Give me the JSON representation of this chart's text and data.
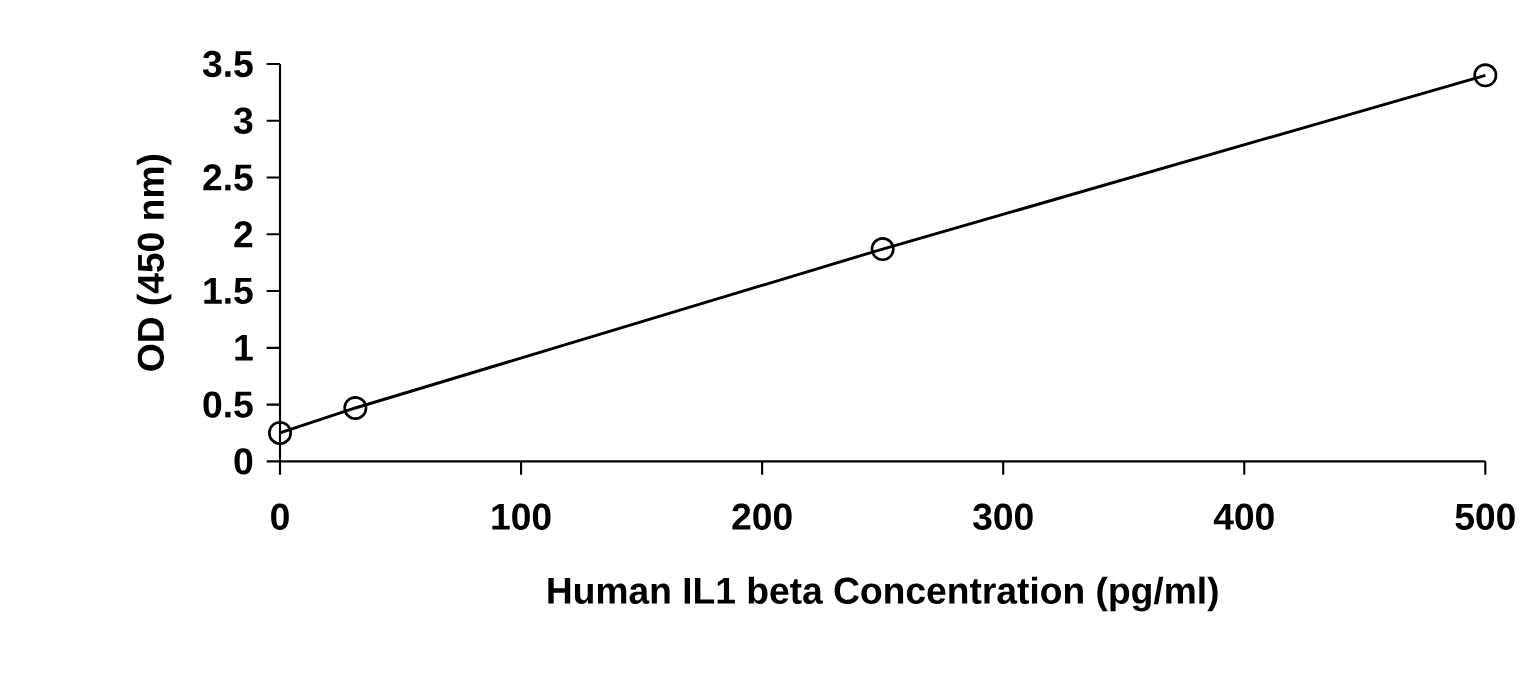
{
  "chart_data": {
    "type": "line",
    "xlabel": "Human IL1 beta Concentration (pg/ml)",
    "ylabel": "OD (450 nm)",
    "x": [
      0,
      31.25,
      250,
      500
    ],
    "series": [
      {
        "color": "#000000",
        "values": [
          0.25,
          0.47,
          1.87,
          3.4
        ]
      }
    ],
    "xlim": [
      0,
      500
    ],
    "xticks": [
      0,
      100,
      200,
      300,
      400,
      500
    ],
    "ylim": [
      0,
      3.5
    ],
    "yticks": [
      0,
      0.5,
      1,
      1.5,
      2,
      2.5,
      3,
      3.5
    ],
    "marker": "circle",
    "line_style": "solid",
    "grid": false
  }
}
